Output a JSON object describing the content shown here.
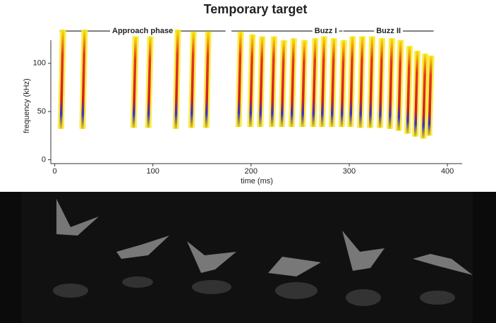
{
  "chart_data": {
    "type": "spectrogram",
    "title": "Temporary target",
    "x_label": "time (ms)",
    "y_label": "frequency (kHz)",
    "xlim": [
      -4,
      415
    ],
    "ylim": [
      -4,
      124
    ],
    "xticks": [
      0,
      100,
      200,
      300,
      400
    ],
    "yticks": [
      0,
      50,
      100
    ],
    "phases": [
      {
        "label": "Approach phase",
        "start": 5,
        "end": 174
      },
      {
        "label": "Buzz I",
        "start": 180,
        "end": 293
      },
      {
        "label": "Buzz II",
        "start": 294,
        "end": 386
      }
    ],
    "calls": [
      {
        "time": 7,
        "fmax": 135,
        "fmin": 32
      },
      {
        "time": 29,
        "fmax": 135,
        "fmin": 32
      },
      {
        "time": 81,
        "fmax": 128,
        "fmin": 33
      },
      {
        "time": 96,
        "fmax": 128,
        "fmin": 33
      },
      {
        "time": 124,
        "fmax": 135,
        "fmin": 32
      },
      {
        "time": 140,
        "fmax": 133,
        "fmin": 33
      },
      {
        "time": 155,
        "fmax": 133,
        "fmin": 33
      },
      {
        "time": 188,
        "fmax": 133,
        "fmin": 34
      },
      {
        "time": 200,
        "fmax": 130,
        "fmin": 34
      },
      {
        "time": 210,
        "fmax": 128,
        "fmin": 34
      },
      {
        "time": 222,
        "fmax": 128,
        "fmin": 34
      },
      {
        "time": 232,
        "fmax": 124,
        "fmin": 34
      },
      {
        "time": 242,
        "fmax": 126,
        "fmin": 34
      },
      {
        "time": 253,
        "fmax": 124,
        "fmin": 34
      },
      {
        "time": 264,
        "fmax": 126,
        "fmin": 34
      },
      {
        "time": 273,
        "fmax": 128,
        "fmin": 34
      },
      {
        "time": 283,
        "fmax": 126,
        "fmin": 34
      },
      {
        "time": 293,
        "fmax": 124,
        "fmin": 34
      },
      {
        "time": 302,
        "fmax": 128,
        "fmin": 34
      },
      {
        "time": 312,
        "fmax": 128,
        "fmin": 33
      },
      {
        "time": 322,
        "fmax": 128,
        "fmin": 33
      },
      {
        "time": 332,
        "fmax": 126,
        "fmin": 33
      },
      {
        "time": 342,
        "fmax": 126,
        "fmin": 32
      },
      {
        "time": 351,
        "fmax": 124,
        "fmin": 30
      },
      {
        "time": 360,
        "fmax": 118,
        "fmin": 27
      },
      {
        "time": 368,
        "fmax": 113,
        "fmin": 24
      },
      {
        "time": 376,
        "fmax": 110,
        "fmin": 22
      },
      {
        "time": 382,
        "fmax": 108,
        "fmin": 25
      }
    ]
  }
}
